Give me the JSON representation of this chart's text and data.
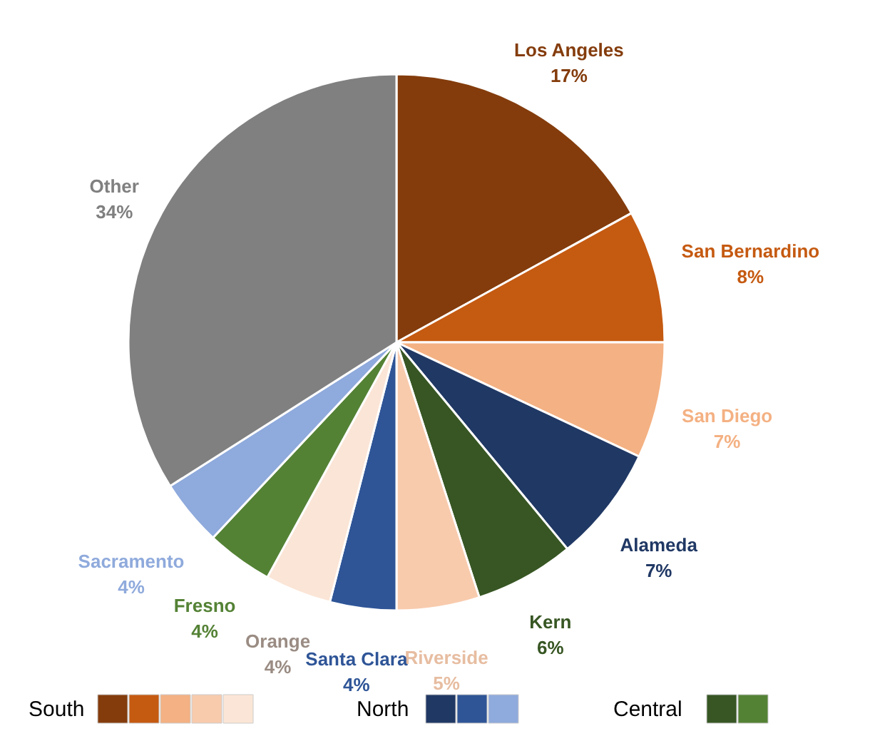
{
  "chart_data": {
    "type": "pie",
    "categories": [
      "Los Angeles",
      "San Bernardino",
      "San Diego",
      "Alameda",
      "Kern",
      "Riverside",
      "Santa Clara",
      "Orange",
      "Fresno",
      "Sacramento",
      "Other"
    ],
    "values": [
      17,
      8,
      7,
      7,
      6,
      5,
      4,
      4,
      4,
      4,
      34
    ],
    "value_labels": [
      "17%",
      "8%",
      "7%",
      "7%",
      "6%",
      "5%",
      "4%",
      "4%",
      "4%",
      "4%",
      "34%"
    ],
    "colors": [
      "#843c0c",
      "#c55a11",
      "#f4b183",
      "#203864",
      "#375623",
      "#f8cbad",
      "#2f5597",
      "#fbe5d6",
      "#548235",
      "#8faadc",
      "#808080"
    ],
    "annotations": [
      "South",
      "North",
      "Central"
    ]
  }
}
